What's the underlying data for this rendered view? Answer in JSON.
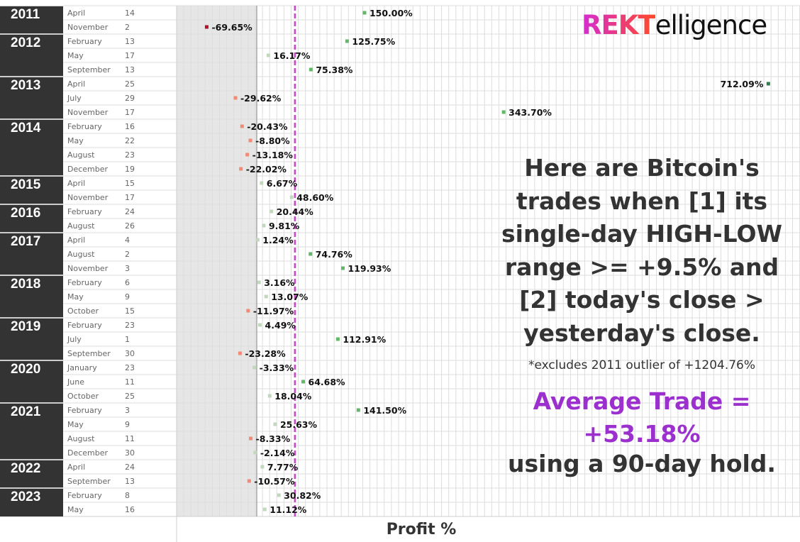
{
  "brand": {
    "logo_bold": "REKT",
    "logo_rest": "elligence"
  },
  "annotation": {
    "headline": "Here are Bitcoin's trades when [1] its single-day HIGH-LOW range >= +9.5% and [2] today's close > yesterday's close.",
    "footnote": "*excludes 2011 outlier of +1204.76%",
    "average": "Average Trade = +53.18%",
    "hold": "using a 90-day hold."
  },
  "colors": {
    "year_band": "#333333",
    "shade": "#e6e6e6",
    "average_line": "#cc44cc",
    "zero_line": "#a8a8a8",
    "grid": "#dddddd",
    "strong_positive": "#2e7d4a",
    "positive": "#62b868",
    "weak": "#c2d8bd",
    "negative": "#f28a76",
    "strong_negative": "#b5122a"
  },
  "chart_data": {
    "type": "scatter",
    "xlabel": "Profit %",
    "average": 53.18,
    "x_range": [
      -100,
      750
    ],
    "rows": [
      {
        "year": "2011",
        "month": "April",
        "day": "14",
        "value": 150.0,
        "label": "150.00%"
      },
      {
        "year": "2011",
        "month": "November",
        "day": "2",
        "value": -69.65,
        "label": "-69.65%"
      },
      {
        "year": "2012",
        "month": "February",
        "day": "13",
        "value": 125.75,
        "label": "125.75%"
      },
      {
        "year": "2012",
        "month": "May",
        "day": "17",
        "value": 16.17,
        "label": "16.17%"
      },
      {
        "year": "2012",
        "month": "September",
        "day": "13",
        "value": 75.38,
        "label": "75.38%"
      },
      {
        "year": "2013",
        "month": "April",
        "day": "25",
        "value": 712.09,
        "label": "712.09%"
      },
      {
        "year": "2013",
        "month": "July",
        "day": "29",
        "value": -29.62,
        "label": "-29.62%"
      },
      {
        "year": "2013",
        "month": "November",
        "day": "17",
        "value": 343.7,
        "label": "343.70%"
      },
      {
        "year": "2014",
        "month": "February",
        "day": "16",
        "value": -20.43,
        "label": "-20.43%"
      },
      {
        "year": "2014",
        "month": "May",
        "day": "22",
        "value": -8.8,
        "label": "-8.80%"
      },
      {
        "year": "2014",
        "month": "August",
        "day": "23",
        "value": -13.18,
        "label": "-13.18%"
      },
      {
        "year": "2014",
        "month": "December",
        "day": "19",
        "value": -22.02,
        "label": "-22.02%"
      },
      {
        "year": "2015",
        "month": "April",
        "day": "15",
        "value": 6.67,
        "label": "6.67%"
      },
      {
        "year": "2015",
        "month": "November",
        "day": "17",
        "value": 48.6,
        "label": "48.60%"
      },
      {
        "year": "2016",
        "month": "February",
        "day": "24",
        "value": 20.44,
        "label": "20.44%"
      },
      {
        "year": "2016",
        "month": "August",
        "day": "26",
        "value": 9.81,
        "label": "9.81%"
      },
      {
        "year": "2017",
        "month": "April",
        "day": "4",
        "value": 1.24,
        "label": "1.24%"
      },
      {
        "year": "2017",
        "month": "August",
        "day": "2",
        "value": 74.76,
        "label": "74.76%"
      },
      {
        "year": "2017",
        "month": "November",
        "day": "3",
        "value": 119.93,
        "label": "119.93%"
      },
      {
        "year": "2018",
        "month": "February",
        "day": "6",
        "value": 3.16,
        "label": "3.16%"
      },
      {
        "year": "2018",
        "month": "May",
        "day": "9",
        "value": 13.07,
        "label": "13.07%"
      },
      {
        "year": "2018",
        "month": "October",
        "day": "15",
        "value": -11.97,
        "label": "-11.97%"
      },
      {
        "year": "2019",
        "month": "February",
        "day": "23",
        "value": 4.49,
        "label": "4.49%"
      },
      {
        "year": "2019",
        "month": "July",
        "day": "1",
        "value": 112.91,
        "label": "112.91%"
      },
      {
        "year": "2019",
        "month": "September",
        "day": "30",
        "value": -23.28,
        "label": "-23.28%"
      },
      {
        "year": "2020",
        "month": "January",
        "day": "23",
        "value": -3.33,
        "label": "-3.33%"
      },
      {
        "year": "2020",
        "month": "June",
        "day": "11",
        "value": 64.68,
        "label": "64.68%"
      },
      {
        "year": "2020",
        "month": "October",
        "day": "25",
        "value": 18.04,
        "label": "18.04%"
      },
      {
        "year": "2021",
        "month": "February",
        "day": "3",
        "value": 141.5,
        "label": "141.50%"
      },
      {
        "year": "2021",
        "month": "May",
        "day": "9",
        "value": 25.63,
        "label": "25.63%"
      },
      {
        "year": "2021",
        "month": "August",
        "day": "11",
        "value": -8.33,
        "label": "-8.33%"
      },
      {
        "year": "2021",
        "month": "December",
        "day": "30",
        "value": -2.14,
        "label": "-2.14%"
      },
      {
        "year": "2022",
        "month": "April",
        "day": "24",
        "value": 7.77,
        "label": "7.77%"
      },
      {
        "year": "2022",
        "month": "September",
        "day": "13",
        "value": -10.57,
        "label": "-10.57%"
      },
      {
        "year": "2023",
        "month": "February",
        "day": "8",
        "value": 30.82,
        "label": "30.82%"
      },
      {
        "year": "2023",
        "month": "May",
        "day": "16",
        "value": 11.12,
        "label": "11.12%"
      }
    ]
  }
}
